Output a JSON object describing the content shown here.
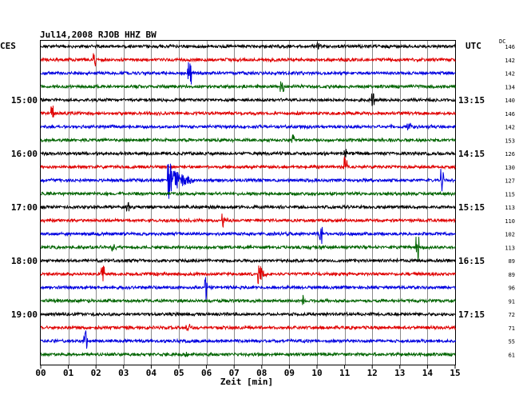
{
  "chart_data": {
    "type": "helicorder",
    "title": "Jul14,2008  RJOB HHZ BW",
    "left_label": "CES",
    "right_label": "UTC",
    "dc_label": "DC",
    "xlabel": "Zeit [min]",
    "xlim": [
      0,
      15
    ],
    "x_ticks": [
      "00",
      "01",
      "02",
      "03",
      "04",
      "05",
      "06",
      "07",
      "08",
      "09",
      "10",
      "11",
      "12",
      "13",
      "14",
      "15"
    ],
    "left_time_labels": [
      {
        "trace": 4,
        "label": "15:00"
      },
      {
        "trace": 8,
        "label": "16:00"
      },
      {
        "trace": 12,
        "label": "17:00"
      },
      {
        "trace": 16,
        "label": "18:00"
      },
      {
        "trace": 20,
        "label": "19:00"
      }
    ],
    "right_time_labels": [
      {
        "trace": 4,
        "label": "13:15"
      },
      {
        "trace": 8,
        "label": "14:15"
      },
      {
        "trace": 12,
        "label": "15:15"
      },
      {
        "trace": 16,
        "label": "16:15"
      },
      {
        "trace": 20,
        "label": "17:15"
      }
    ],
    "trace_colors": [
      "#000000",
      "#e00000",
      "#0000e0",
      "#006400"
    ],
    "dc_offsets": [
      "146",
      "142",
      "142",
      "134",
      "140",
      "146",
      "142",
      "153",
      "126",
      "130",
      "127",
      "115",
      "113",
      "110",
      "102",
      "113",
      "89",
      "89",
      "96",
      "91",
      "72",
      "71",
      "55",
      "61"
    ],
    "events": [
      {
        "trace": 0,
        "minute": 10.0,
        "amplitude": 0.5,
        "duration": 0.3
      },
      {
        "trace": 1,
        "minute": 1.9,
        "amplitude": 1.0,
        "duration": 0.06
      },
      {
        "trace": 2,
        "minute": 5.35,
        "amplitude": 1.3,
        "duration": 0.05
      },
      {
        "trace": 3,
        "minute": 8.7,
        "amplitude": 0.6,
        "duration": 0.05
      },
      {
        "trace": 4,
        "minute": 12.0,
        "amplitude": 0.7,
        "duration": 0.05
      },
      {
        "trace": 5,
        "minute": 0.4,
        "amplitude": 0.8,
        "duration": 0.05
      },
      {
        "trace": 6,
        "minute": 13.3,
        "amplitude": 0.4,
        "duration": 0.05
      },
      {
        "trace": 7,
        "minute": 9.1,
        "amplitude": 0.7,
        "duration": 0.06
      },
      {
        "trace": 8,
        "minute": 11.0,
        "amplitude": 0.5,
        "duration": 0.05
      },
      {
        "trace": 9,
        "minute": 11.0,
        "amplitude": 1.2,
        "duration": 0.05
      },
      {
        "trace": 10,
        "minute": 4.6,
        "amplitude": 2.2,
        "duration": 0.9
      },
      {
        "trace": 10,
        "minute": 14.5,
        "amplitude": 1.3,
        "duration": 0.05
      },
      {
        "trace": 12,
        "minute": 3.1,
        "amplitude": 0.5,
        "duration": 0.05
      },
      {
        "trace": 13,
        "minute": 6.6,
        "amplitude": 0.8,
        "duration": 0.3
      },
      {
        "trace": 14,
        "minute": 10.1,
        "amplitude": 1.1,
        "duration": 0.05
      },
      {
        "trace": 15,
        "minute": 2.6,
        "amplitude": 0.6,
        "duration": 0.25
      },
      {
        "trace": 15,
        "minute": 13.6,
        "amplitude": 1.6,
        "duration": 0.05
      },
      {
        "trace": 17,
        "minute": 2.2,
        "amplitude": 0.9,
        "duration": 0.05
      },
      {
        "trace": 17,
        "minute": 7.9,
        "amplitude": 1.3,
        "duration": 0.3
      },
      {
        "trace": 18,
        "minute": 5.95,
        "amplitude": 1.3,
        "duration": 0.05
      },
      {
        "trace": 19,
        "minute": 9.5,
        "amplitude": 0.7,
        "duration": 0.05
      },
      {
        "trace": 21,
        "minute": 5.3,
        "amplitude": 0.5,
        "duration": 0.05
      },
      {
        "trace": 22,
        "minute": 1.6,
        "amplitude": 1.1,
        "duration": 0.05
      },
      {
        "trace": 23,
        "minute": 5.2,
        "amplitude": 0.4,
        "duration": 0.05
      }
    ],
    "grid": "vertical"
  }
}
